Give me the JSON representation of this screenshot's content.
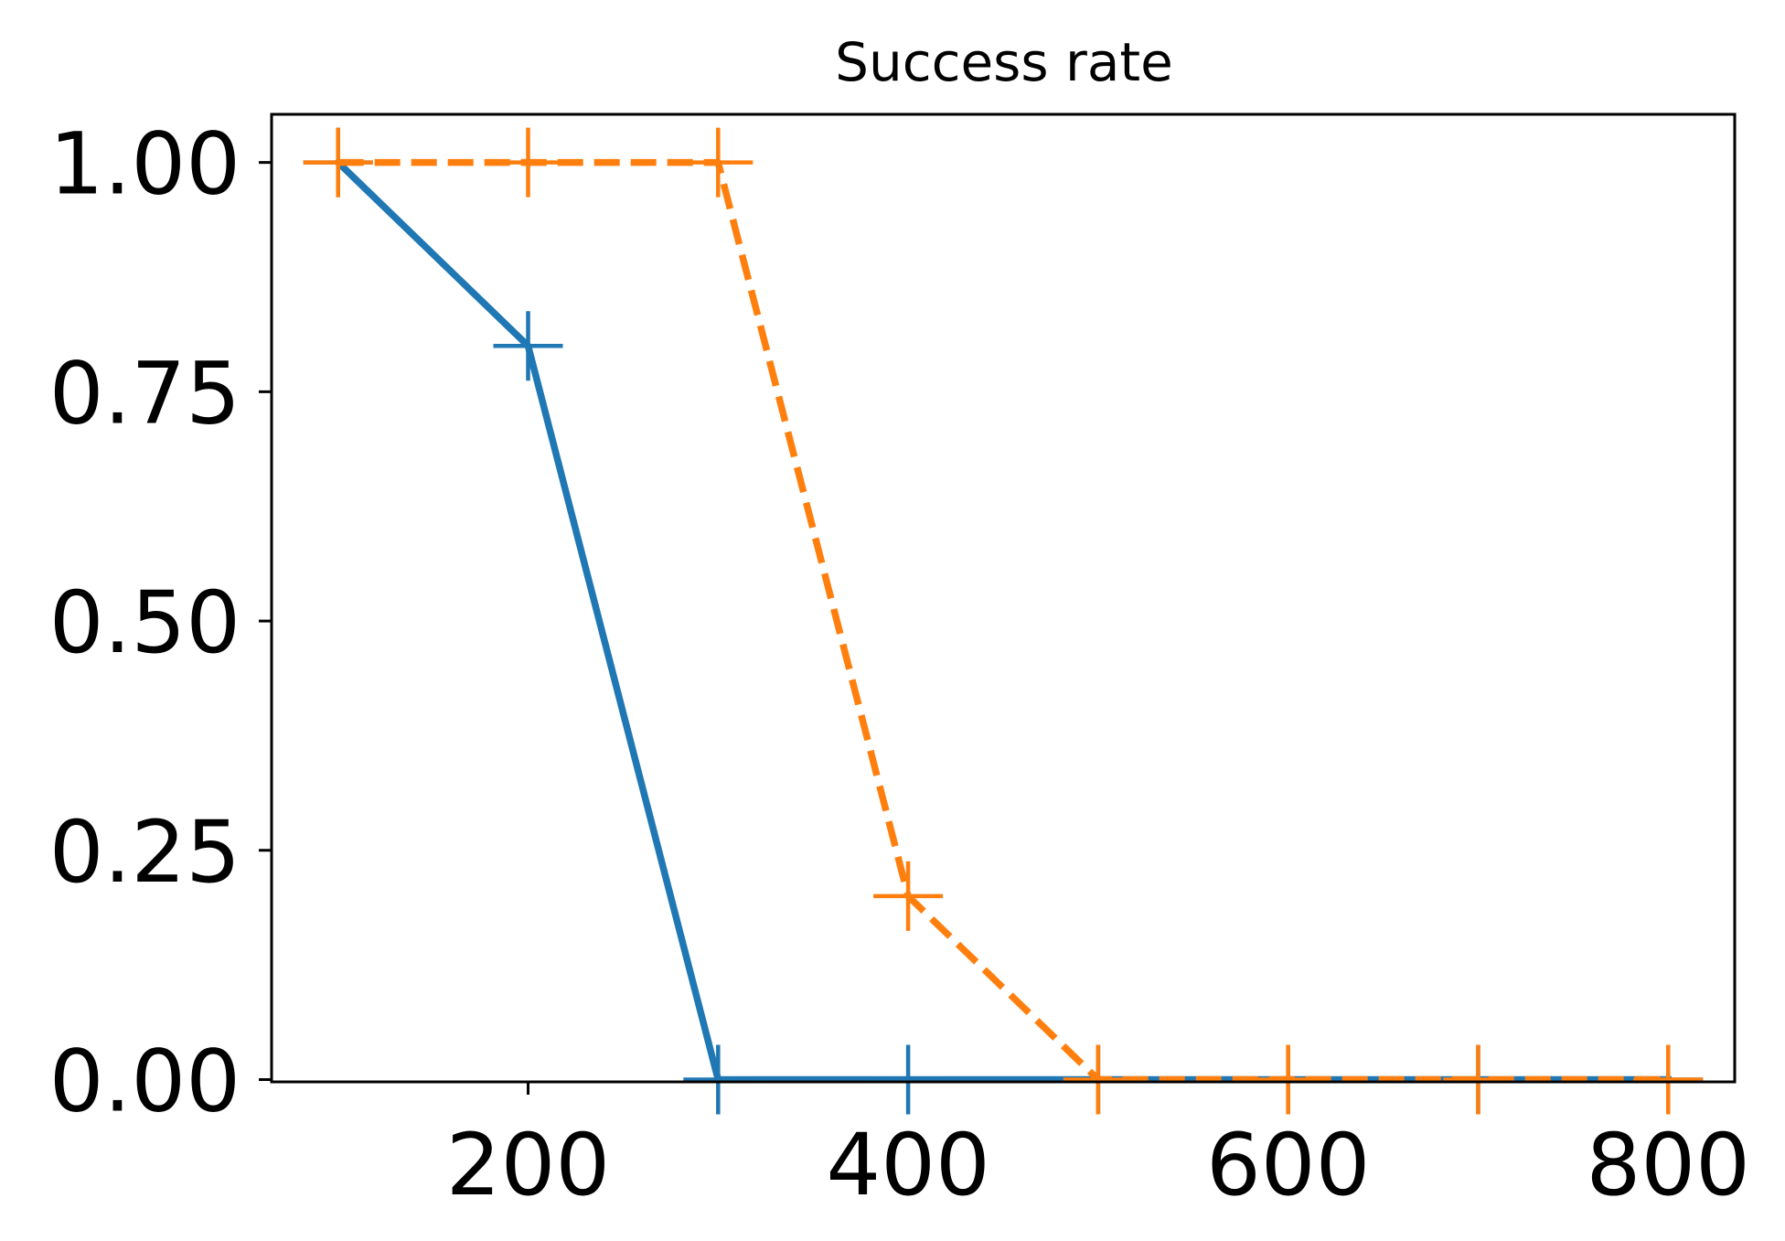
{
  "chart_data": {
    "type": "line",
    "title": "Success rate",
    "xlabel": "",
    "ylabel": "",
    "xlim": [
      65,
      835
    ],
    "ylim": [
      -0.0025,
      1.0525
    ],
    "xticks": [
      200,
      400,
      600,
      800
    ],
    "xtick_labels": [
      "200",
      "400",
      "600",
      "800"
    ],
    "yticks": [
      0.0,
      0.25,
      0.5,
      0.75,
      1.0
    ],
    "ytick_labels": [
      "0.00",
      "0.25",
      "0.50",
      "0.75",
      "1.00"
    ],
    "grid": false,
    "legend": "none",
    "series": [
      {
        "color": "#1f77b4",
        "line_style": "solid",
        "marker": "+",
        "x": [
          100,
          200,
          300,
          400,
          500,
          600,
          700,
          800
        ],
        "y": [
          1.0,
          0.8,
          0.0,
          0.0,
          0.0,
          0.0,
          0.0,
          0.0
        ]
      },
      {
        "color": "#ff7f0e",
        "line_style": "dashed",
        "marker": "+",
        "x": [
          100,
          200,
          300,
          400,
          500,
          600,
          700,
          800
        ],
        "y": [
          1.0,
          1.0,
          1.0,
          0.2,
          0.0,
          0.0,
          0.0,
          0.0
        ]
      }
    ]
  }
}
